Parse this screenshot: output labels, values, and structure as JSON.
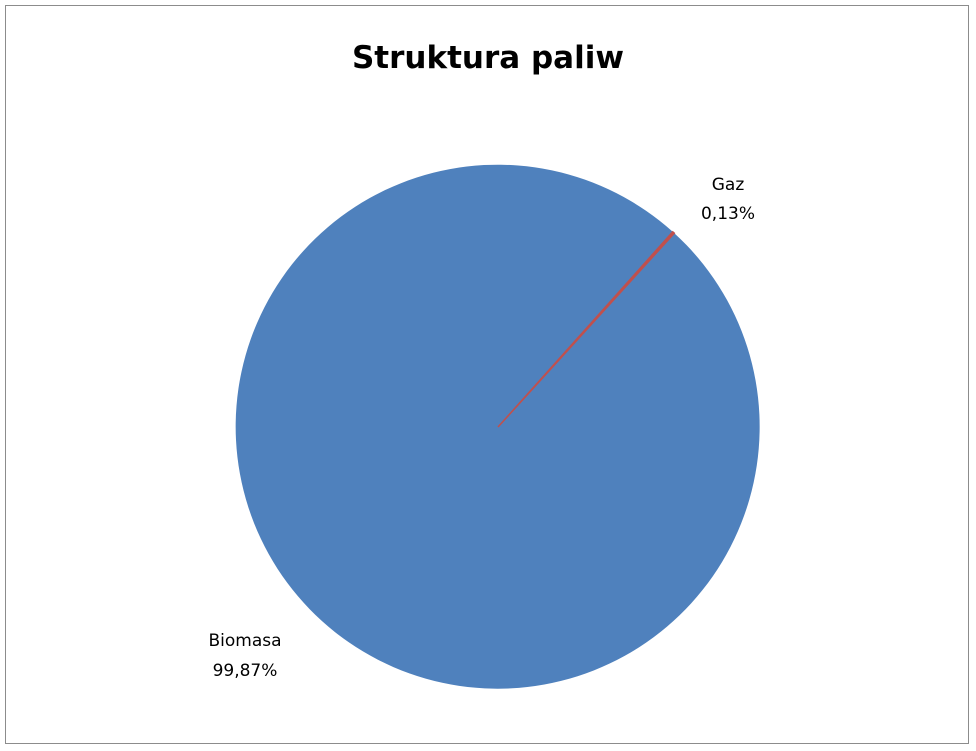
{
  "chart_data": {
    "type": "pie",
    "title": "Struktura paliw",
    "slices": [
      {
        "label": "Biomasa",
        "value": 99.87,
        "value_label": "99,87%",
        "color": "#4f81bd"
      },
      {
        "label": "Gaz",
        "value": 0.13,
        "value_label": "0,13%",
        "color": "#c0504d"
      }
    ],
    "start_angle_deg": 42.3,
    "direction": "clockwise",
    "legend": "none",
    "data_labels": "outside"
  }
}
